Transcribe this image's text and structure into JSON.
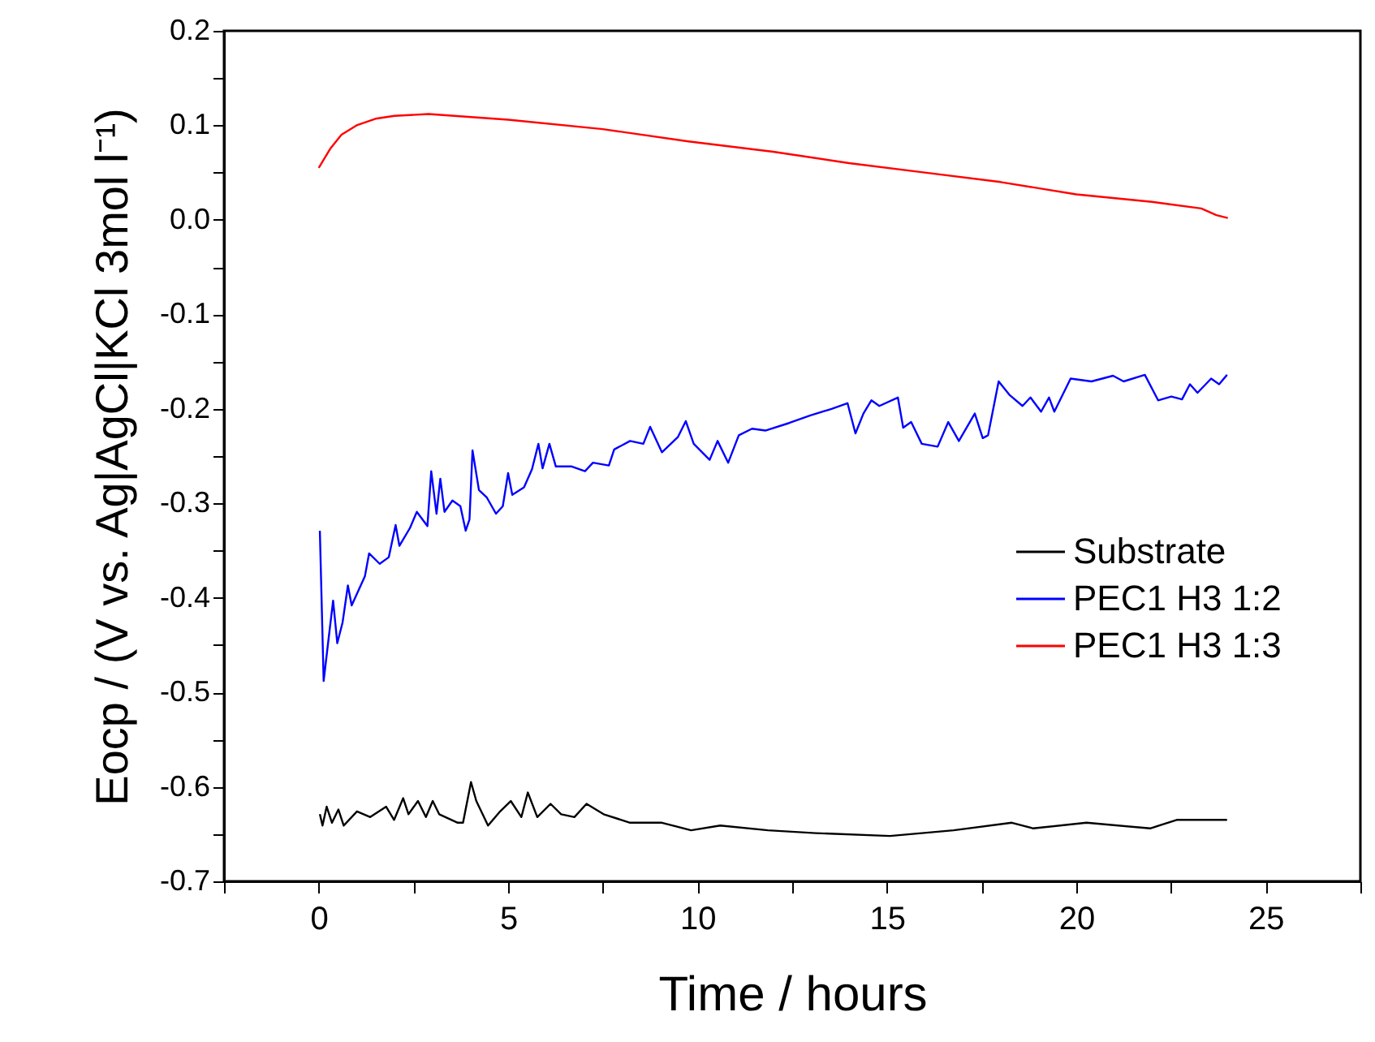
{
  "chart_data": {
    "type": "line",
    "xlabel": "Time / hours",
    "ylabel": "Eocp / (V vs. Ag|AgCl|KCl 3mol l⁻¹)",
    "xlim": [
      -2.5,
      27.5
    ],
    "ylim": [
      -0.7,
      0.2
    ],
    "xticks": [
      {
        "value": -2.5,
        "label": null
      },
      0,
      {
        "value": 2.5,
        "label": null
      },
      5,
      {
        "value": 7.5,
        "label": null
      },
      10,
      {
        "value": 12.5,
        "label": null
      },
      15,
      {
        "value": 17.5,
        "label": null
      },
      20,
      {
        "value": 22.5,
        "label": null
      },
      25,
      {
        "value": 27.5,
        "label": null
      }
    ],
    "yticks": [
      -0.7,
      {
        "value": -0.65,
        "label": null
      },
      -0.6,
      {
        "value": -0.55,
        "label": null
      },
      -0.5,
      {
        "value": -0.45,
        "label": null
      },
      -0.4,
      {
        "value": -0.35,
        "label": null
      },
      -0.3,
      {
        "value": -0.25,
        "label": null
      },
      -0.2,
      {
        "value": -0.15,
        "label": null
      },
      -0.1,
      {
        "value": -0.05,
        "label": null
      },
      {
        "value": 0,
        "label": "0.0"
      },
      {
        "value": 0.05,
        "label": null
      },
      0.1,
      {
        "value": 0.15,
        "label": null
      },
      0.2
    ],
    "grid": false,
    "legend": "right",
    "marker": "none",
    "line_style": "solid",
    "series": [
      {
        "name": "Substrate",
        "color": "#000000",
        "x": [
          0.03,
          0.1,
          0.21,
          0.35,
          0.52,
          0.66,
          1.01,
          1.36,
          1.78,
          1.99,
          2.23,
          2.37,
          2.62,
          2.83,
          3.01,
          3.18,
          3.67,
          3.81,
          4.02,
          4.16,
          4.47,
          4.79,
          5.07,
          5.35,
          5.52,
          5.77,
          6.12,
          6.4,
          6.75,
          7.07,
          7.52,
          8.22,
          9.06,
          9.83,
          10.6,
          11.86,
          13.12,
          15.08,
          16.76,
          18.3,
          18.86,
          20.27,
          21.95,
          22.65,
          23.98
        ],
        "values": [
          -0.629,
          -0.641,
          -0.621,
          -0.638,
          -0.624,
          -0.641,
          -0.626,
          -0.632,
          -0.621,
          -0.635,
          -0.612,
          -0.629,
          -0.615,
          -0.632,
          -0.615,
          -0.629,
          -0.638,
          -0.638,
          -0.595,
          -0.615,
          -0.641,
          -0.626,
          -0.615,
          -0.632,
          -0.606,
          -0.632,
          -0.618,
          -0.629,
          -0.632,
          -0.618,
          -0.629,
          -0.638,
          -0.638,
          -0.646,
          -0.641,
          -0.646,
          -0.649,
          -0.652,
          -0.646,
          -0.638,
          -0.644,
          -0.638,
          -0.644,
          -0.635,
          -0.635
        ]
      },
      {
        "name": "PEC1 H3 1:2",
        "color": "#0000ff",
        "x": [
          0.03,
          0.13,
          0.27,
          0.38,
          0.49,
          0.63,
          0.77,
          0.87,
          1.22,
          1.33,
          1.61,
          1.85,
          2.03,
          2.13,
          2.41,
          2.59,
          2.87,
          2.97,
          3.11,
          3.21,
          3.32,
          3.53,
          3.74,
          3.88,
          3.98,
          4.06,
          4.23,
          4.44,
          4.68,
          4.86,
          5.0,
          5.11,
          5.42,
          5.63,
          5.8,
          5.91,
          6.09,
          6.26,
          6.68,
          7.03,
          7.24,
          7.66,
          7.8,
          8.22,
          8.57,
          8.75,
          9.06,
          9.48,
          9.69,
          9.9,
          10.32,
          10.53,
          10.81,
          11.09,
          11.44,
          11.79,
          12.42,
          12.98,
          13.54,
          13.96,
          14.17,
          14.38,
          14.59,
          14.8,
          15.29,
          15.43,
          15.64,
          15.92,
          16.34,
          16.62,
          16.9,
          17.32,
          17.53,
          17.67,
          17.95,
          18.23,
          18.58,
          18.79,
          19.07,
          19.28,
          19.42,
          19.85,
          20.4,
          20.97,
          21.25,
          21.81,
          22.16,
          22.51,
          22.79,
          23.0,
          23.2,
          23.56,
          23.77,
          23.98
        ],
        "values": [
          -0.329,
          -0.488,
          -0.44,
          -0.403,
          -0.448,
          -0.426,
          -0.387,
          -0.408,
          -0.377,
          -0.353,
          -0.364,
          -0.357,
          -0.323,
          -0.345,
          -0.326,
          -0.309,
          -0.324,
          -0.266,
          -0.311,
          -0.274,
          -0.309,
          -0.297,
          -0.303,
          -0.329,
          -0.317,
          -0.244,
          -0.286,
          -0.294,
          -0.311,
          -0.303,
          -0.268,
          -0.291,
          -0.283,
          -0.264,
          -0.237,
          -0.263,
          -0.237,
          -0.261,
          -0.261,
          -0.266,
          -0.257,
          -0.26,
          -0.243,
          -0.234,
          -0.237,
          -0.219,
          -0.246,
          -0.23,
          -0.213,
          -0.237,
          -0.254,
          -0.234,
          -0.257,
          -0.228,
          -0.221,
          -0.223,
          -0.215,
          -0.207,
          -0.2,
          -0.194,
          -0.226,
          -0.205,
          -0.191,
          -0.197,
          -0.188,
          -0.22,
          -0.214,
          -0.237,
          -0.24,
          -0.214,
          -0.234,
          -0.205,
          -0.231,
          -0.228,
          -0.171,
          -0.185,
          -0.197,
          -0.188,
          -0.203,
          -0.188,
          -0.203,
          -0.168,
          -0.171,
          -0.165,
          -0.171,
          -0.164,
          -0.191,
          -0.187,
          -0.19,
          -0.174,
          -0.183,
          -0.168,
          -0.174,
          -0.164
        ]
      },
      {
        "name": "PEC1 H3 1:3",
        "color": "#ff0000",
        "x": [
          0,
          0.3,
          0.6,
          1,
          1.5,
          2,
          2.9,
          5,
          7.5,
          9.76,
          12,
          14,
          16,
          18,
          20,
          22,
          23.3,
          23.7,
          24
        ],
        "values": [
          0.055,
          0.075,
          0.09,
          0.1,
          0.107,
          0.11,
          0.112,
          0.106,
          0.096,
          0.083,
          0.072,
          0.06,
          0.05,
          0.04,
          0.027,
          0.019,
          0.012,
          0.005,
          0.002
        ]
      }
    ]
  }
}
